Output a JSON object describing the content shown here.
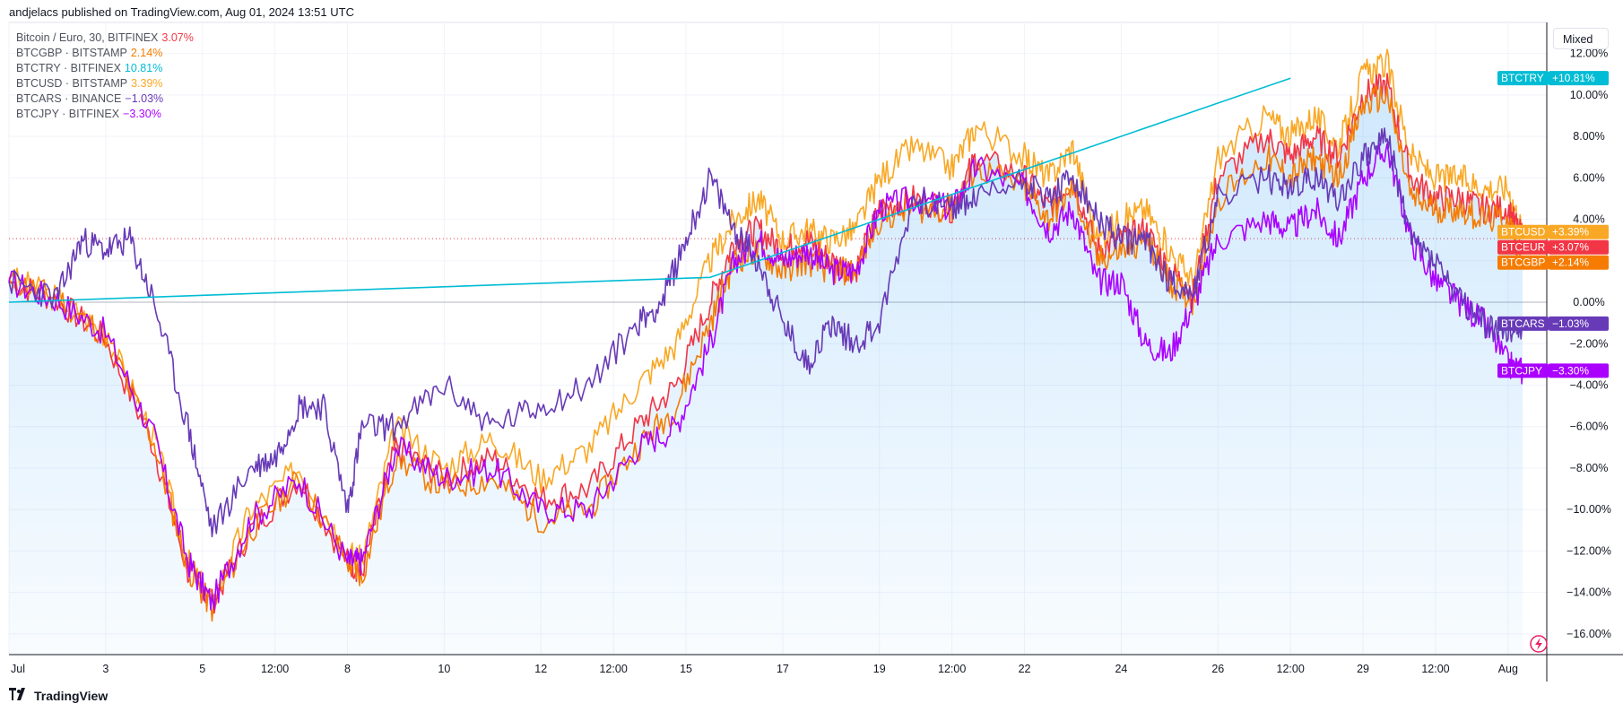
{
  "header": {
    "publisher_line": "andjelacs published on TradingView.com, Aug 01, 2024 13:51 UTC"
  },
  "legend": [
    {
      "name": "Bitcoin / Euro, 30, BITFINEX",
      "value": "3.07%",
      "color": "#f23645"
    },
    {
      "name": "BTCGBP · BITSTAMP",
      "value": "2.14%",
      "color": "#f57c00"
    },
    {
      "name": "BTCTRY · BITFINEX",
      "value": "10.81%",
      "color": "#00bcd4"
    },
    {
      "name": "BTCUSD · BITSTAMP",
      "value": "3.39%",
      "color": "#f9a825"
    },
    {
      "name": "BTCARS · BINANCE",
      "value": "−1.03%",
      "color": "#673ab7"
    },
    {
      "name": "BTCJPY · BITFINEX",
      "value": "−3.30%",
      "color": "#aa00ff"
    }
  ],
  "scale_mode_button": "Mixed",
  "footer": {
    "brand": "TradingView"
  },
  "chart_data": {
    "type": "line",
    "y_unit": "percent change",
    "ylim": [
      -17,
      13.5
    ],
    "y_ticks": [
      "12.00%",
      "10.00%",
      "8.00%",
      "6.00%",
      "4.00%",
      "2.00%",
      "0.00%",
      "−2.00%",
      "−4.00%",
      "−6.00%",
      "−8.00%",
      "−10.00%",
      "−12.00%",
      "−14.00%",
      "−16.00%"
    ],
    "y_tick_values": [
      12,
      10,
      8,
      6,
      4,
      2,
      0,
      -2,
      -4,
      -6,
      -8,
      -10,
      -12,
      -14,
      -16
    ],
    "x_ticks": [
      "Jul",
      "3",
      "5",
      "12:00",
      "8",
      "10",
      "12",
      "12:00",
      "15",
      "17",
      "19",
      "12:00",
      "22",
      "24",
      "26",
      "12:00",
      "29",
      "12:00",
      "Aug"
    ],
    "x_tick_positions": [
      0,
      2,
      4,
      5.5,
      7,
      9,
      11,
      12.5,
      14,
      16,
      18,
      19.5,
      21,
      23,
      25,
      26.5,
      28,
      29.5,
      31
    ],
    "x_range": [
      0,
      31.8
    ],
    "grid": true,
    "legend_position": "top-left",
    "current_price_line": 3.07,
    "series": [
      {
        "name": "BTCUSD",
        "color": "#f9a825",
        "last_label": "+3.39%",
        "last": 3.39,
        "x": [
          0,
          1,
          2,
          3,
          3.7,
          4.2,
          5,
          6,
          7,
          7.3,
          8,
          9,
          10,
          11,
          12,
          13,
          13.8,
          14.5,
          15,
          15.5,
          16,
          16.5,
          17,
          17.5,
          18,
          18.7,
          19.5,
          20,
          21,
          21.5,
          22,
          22.5,
          23,
          23.5,
          24,
          24.5,
          25,
          26,
          26.5,
          27,
          27.5,
          28,
          28.5,
          29,
          29.5,
          30,
          30.5,
          31,
          31.3
        ],
        "values": [
          1.2,
          0.2,
          -1.5,
          -6.5,
          -12.5,
          -14.5,
          -10,
          -8,
          -12,
          -12.5,
          -6,
          -8,
          -6.5,
          -8.5,
          -7,
          -4,
          -2,
          2,
          4,
          5,
          3,
          3.5,
          3,
          3.5,
          6,
          7.5,
          6.5,
          8.5,
          7,
          6,
          7.5,
          3,
          4,
          4.5,
          2.5,
          1,
          7,
          9,
          8,
          9,
          7.5,
          11,
          11.5,
          7,
          6,
          6,
          5.5,
          5.5,
          3.39
        ]
      },
      {
        "name": "BTCEUR",
        "color": "#f23645",
        "last_label": "+3.07%",
        "last": 3.07,
        "x": [
          0,
          1,
          2,
          3,
          3.7,
          4.2,
          5,
          6,
          7,
          7.3,
          8,
          9,
          10,
          11,
          12,
          13,
          13.8,
          14.5,
          15,
          15.5,
          16,
          16.5,
          17,
          17.5,
          18,
          18.7,
          19.5,
          20,
          21,
          21.5,
          22,
          22.5,
          23,
          23.5,
          24,
          24.5,
          25,
          26,
          26.5,
          27,
          27.5,
          28,
          28.5,
          29,
          29.5,
          30,
          30.5,
          31,
          31.3
        ],
        "values": [
          1.0,
          0.1,
          -1.8,
          -7,
          -13,
          -14.5,
          -11,
          -8.5,
          -12.5,
          -13,
          -7,
          -8.5,
          -7.5,
          -9.5,
          -9,
          -6,
          -4,
          0,
          3,
          3.5,
          2.5,
          3,
          2,
          1.5,
          4.5,
          5,
          4.5,
          7,
          6,
          4.5,
          6,
          2.5,
          3,
          3.5,
          1.5,
          0.5,
          6,
          8,
          7,
          8,
          7,
          10,
          10.5,
          6,
          5,
          5,
          4.5,
          4.5,
          3.07
        ]
      },
      {
        "name": "BTCGBP",
        "color": "#f57c00",
        "last_label": "+2.14%",
        "last": 2.14,
        "x": [
          0,
          1,
          2,
          3,
          3.7,
          4.2,
          5,
          6,
          7,
          7.3,
          8,
          9,
          10,
          11,
          12,
          13,
          13.8,
          14.5,
          15,
          15.5,
          16,
          16.5,
          17,
          17.5,
          18,
          18.7,
          19.5,
          20,
          21,
          21.5,
          22,
          22.5,
          23,
          23.5,
          24,
          24.5,
          25,
          26,
          26.5,
          27,
          27.5,
          28,
          28.5,
          29,
          29.5,
          30,
          30.5,
          31,
          31.3
        ],
        "values": [
          1.1,
          0.2,
          -1.6,
          -6.8,
          -12.8,
          -14.8,
          -11,
          -8.5,
          -12.5,
          -13.2,
          -7.5,
          -9,
          -8.5,
          -10.5,
          -10,
          -7,
          -5,
          -1,
          2,
          2.5,
          1.5,
          2,
          1.5,
          1.5,
          4,
          4.5,
          4.5,
          6.5,
          5.5,
          4,
          5.5,
          2,
          2.5,
          3,
          1,
          0,
          5,
          7,
          6,
          7,
          6,
          9.5,
          10,
          5,
          4.5,
          4.5,
          4,
          4,
          2.14
        ]
      },
      {
        "name": "BTCJPY",
        "color": "#aa00ff",
        "last_label": "−3.30%",
        "last": -3.3,
        "x": [
          0,
          1,
          2,
          3,
          3.7,
          4.2,
          5,
          6,
          7,
          7.3,
          8,
          9,
          10,
          11,
          12,
          13,
          13.8,
          14.5,
          15,
          15.5,
          16,
          16.5,
          17,
          17.5,
          18,
          18.7,
          19.5,
          20,
          21,
          21.5,
          22,
          22.5,
          23,
          23.5,
          24,
          24.5,
          25,
          26,
          26.5,
          27,
          27.5,
          28,
          28.5,
          29,
          29.5,
          30,
          30.5,
          31,
          31.3
        ],
        "values": [
          1.0,
          0.1,
          -1.5,
          -6.5,
          -12.5,
          -14.5,
          -10.5,
          -8.5,
          -12.5,
          -12.5,
          -7,
          -8.5,
          -8,
          -10,
          -10,
          -7,
          -6,
          -2,
          2,
          3,
          2,
          2.5,
          1.5,
          1.5,
          4.5,
          5,
          4.5,
          6.5,
          5.5,
          3.5,
          4.5,
          1,
          1,
          -2,
          -2.5,
          0,
          3,
          4,
          3.5,
          4.5,
          3,
          6,
          7.5,
          3,
          1,
          0,
          -1,
          -3,
          -3.3
        ]
      },
      {
        "name": "BTCARS",
        "color": "#673ab7",
        "last_label": "−1.03%",
        "last": -1.03,
        "x": [
          0,
          1,
          1.5,
          2,
          2.5,
          3,
          3.7,
          4.2,
          5,
          5.5,
          6,
          6.5,
          7,
          7.3,
          8,
          9,
          10,
          11,
          12,
          13,
          13.5,
          14,
          14.5,
          15,
          15.5,
          16,
          16.5,
          17,
          17.5,
          18,
          18.7,
          19.5,
          20,
          21,
          21.5,
          22,
          22.5,
          23,
          23.5,
          24,
          24.5,
          25,
          26,
          26.5,
          27,
          27.5,
          28,
          28.5,
          29,
          29.5,
          30,
          30.5,
          31,
          31.3
        ],
        "values": [
          1.0,
          0.2,
          3,
          2.5,
          3,
          0,
          -6,
          -11,
          -8,
          -7.5,
          -5,
          -5,
          -10,
          -6,
          -6,
          -4,
          -6,
          -5,
          -4,
          -1,
          0,
          3,
          6,
          3.5,
          2,
          -1,
          -3,
          -1,
          -2,
          -1,
          5,
          4.5,
          5,
          6,
          5,
          6,
          4,
          3,
          3,
          1,
          0.5,
          5,
          6,
          5.5,
          6,
          5,
          7,
          8,
          3,
          2,
          0,
          -1,
          -1.5,
          -1.03
        ]
      },
      {
        "name": "BTCTRY",
        "color": "#00bcd4",
        "last_label": "+10.81%",
        "last": 10.81,
        "x": [
          0,
          14.5,
          26.5
        ],
        "values": [
          0,
          1.2,
          10.81
        ]
      }
    ]
  }
}
